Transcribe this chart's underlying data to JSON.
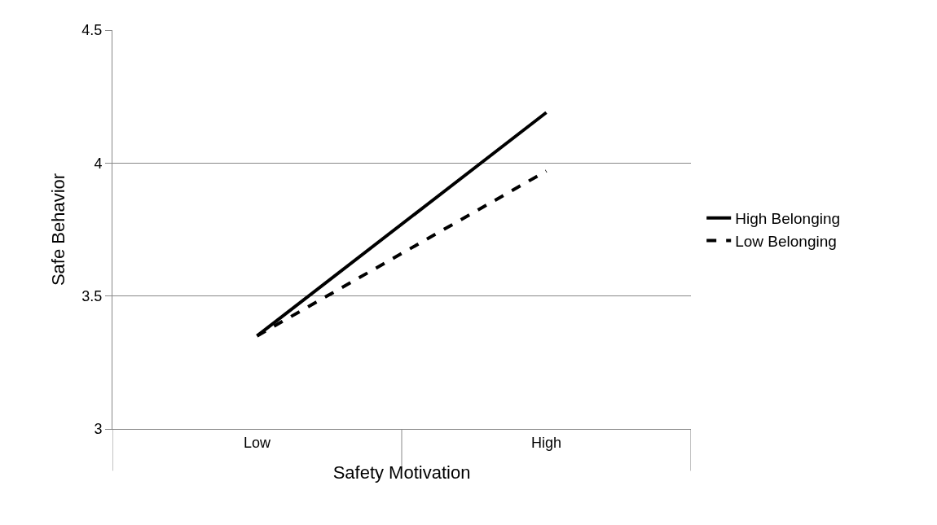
{
  "chart_data": {
    "type": "line",
    "xlabel": "Safety Motivation",
    "ylabel": "Safe Behavior",
    "categories": [
      "Low",
      "High"
    ],
    "series": [
      {
        "name": "High Belonging",
        "color": "#000000",
        "line_style": "solid",
        "values": [
          3.35,
          4.19
        ]
      },
      {
        "name": "Low Belonging",
        "color": "#000000",
        "line_style": "dashed",
        "values": [
          3.35,
          3.97
        ]
      }
    ],
    "ylim": [
      3,
      4.5
    ],
    "yticks": [
      3,
      3.5,
      4,
      4.5
    ],
    "grid": "y",
    "legend": "right",
    "marker": "none"
  }
}
